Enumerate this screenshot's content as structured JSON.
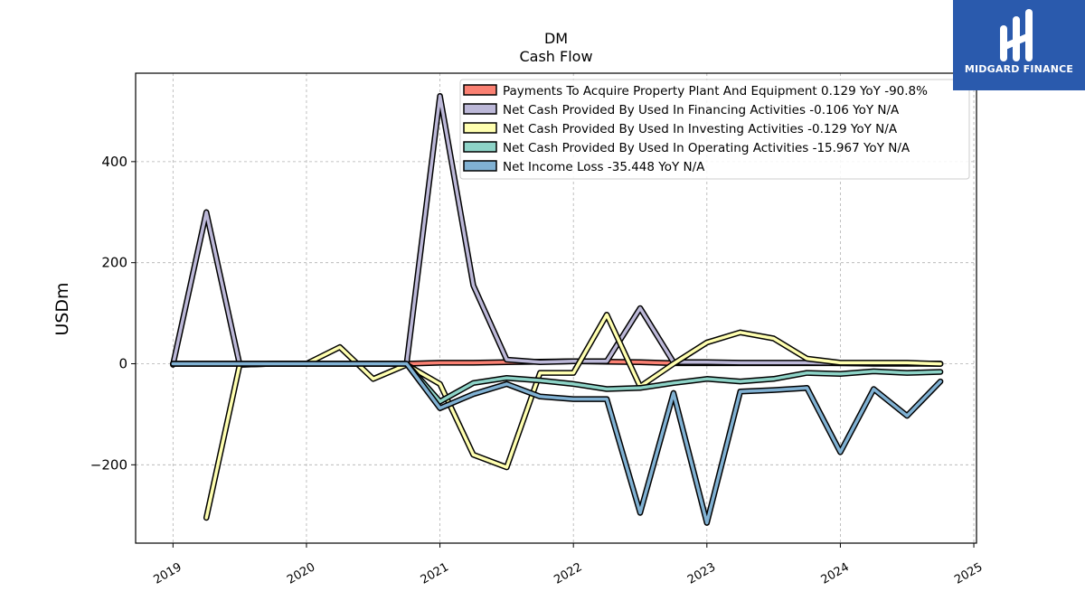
{
  "chart_data": {
    "type": "line",
    "title": "DM",
    "subtitle": "Cash Flow",
    "ylabel": "USDm",
    "xlabel": "",
    "xlim": [
      2018.72,
      2025.02
    ],
    "ylim": [
      -355,
      575
    ],
    "yticks": [
      -200,
      0,
      200,
      400
    ],
    "ytick_labels": [
      "−200",
      "0",
      "200",
      "400"
    ],
    "xticks": [
      2019,
      2020,
      2021,
      2022,
      2023,
      2024,
      2025
    ],
    "xtick_labels": [
      "2019",
      "2020",
      "2021",
      "2022",
      "2023",
      "2024",
      "2025"
    ],
    "grid": true,
    "legend_position": "top-right",
    "x": [
      2019.0,
      2019.25,
      2019.5,
      2019.75,
      2020.0,
      2020.25,
      2020.5,
      2020.75,
      2021.0,
      2021.25,
      2021.5,
      2021.75,
      2022.0,
      2022.25,
      2022.5,
      2022.75,
      2023.0,
      2023.25,
      2023.5,
      2023.75,
      2024.0,
      2024.25,
      2024.5,
      2024.75
    ],
    "series": [
      {
        "name": "Payments To Acquire Property Plant And Equipment  0.129 YoY -90.8%",
        "color": "#fa8072",
        "values": [
          0,
          0,
          0,
          0,
          0,
          0,
          0,
          0,
          2,
          2,
          3,
          4,
          5,
          4,
          3,
          1,
          1,
          1,
          1,
          1,
          1,
          1,
          0.5,
          0.1
        ]
      },
      {
        "name": "Net Cash Provided By Used In Financing Activities  -0.106 YoY N/A",
        "color": "#bcb8d8",
        "values": [
          -2,
          300,
          -2,
          0,
          0,
          0,
          0,
          0,
          530,
          155,
          8,
          3,
          5,
          5,
          110,
          3,
          3,
          2,
          2,
          2,
          1,
          0,
          0,
          -0.1
        ]
      },
      {
        "name": "Net Cash Provided By Used In Investing Activities  -0.129 YoY N/A",
        "color": "#ffffb0",
        "values": [
          null,
          -305,
          -2,
          0,
          0,
          33,
          -30,
          -2,
          -40,
          -180,
          -205,
          -18,
          -18,
          97,
          -45,
          0,
          42,
          62,
          50,
          10,
          2,
          2,
          2,
          -0.1
        ]
      },
      {
        "name": "Net Cash Provided By Used In Operating Activities  -15.967 YoY N/A",
        "color": "#8dd3c7",
        "values": [
          0,
          0,
          0,
          0,
          0,
          0,
          0,
          0,
          -75,
          -38,
          -28,
          -33,
          -40,
          -50,
          -48,
          -38,
          -30,
          -35,
          -30,
          -18,
          -20,
          -15,
          -18,
          -16
        ]
      },
      {
        "name": "Net Income Loss  -35.448 YoY N/A",
        "color": "#80b1d3",
        "values": [
          0,
          0,
          0,
          0,
          0,
          0,
          0,
          0,
          -88,
          -60,
          -40,
          -65,
          -70,
          -70,
          -295,
          -58,
          -315,
          -55,
          -52,
          -48,
          -175,
          -50,
          -103,
          -35
        ]
      }
    ]
  },
  "logo": {
    "text": "MIDGARD FINANCE",
    "color": "#2a5aad"
  }
}
